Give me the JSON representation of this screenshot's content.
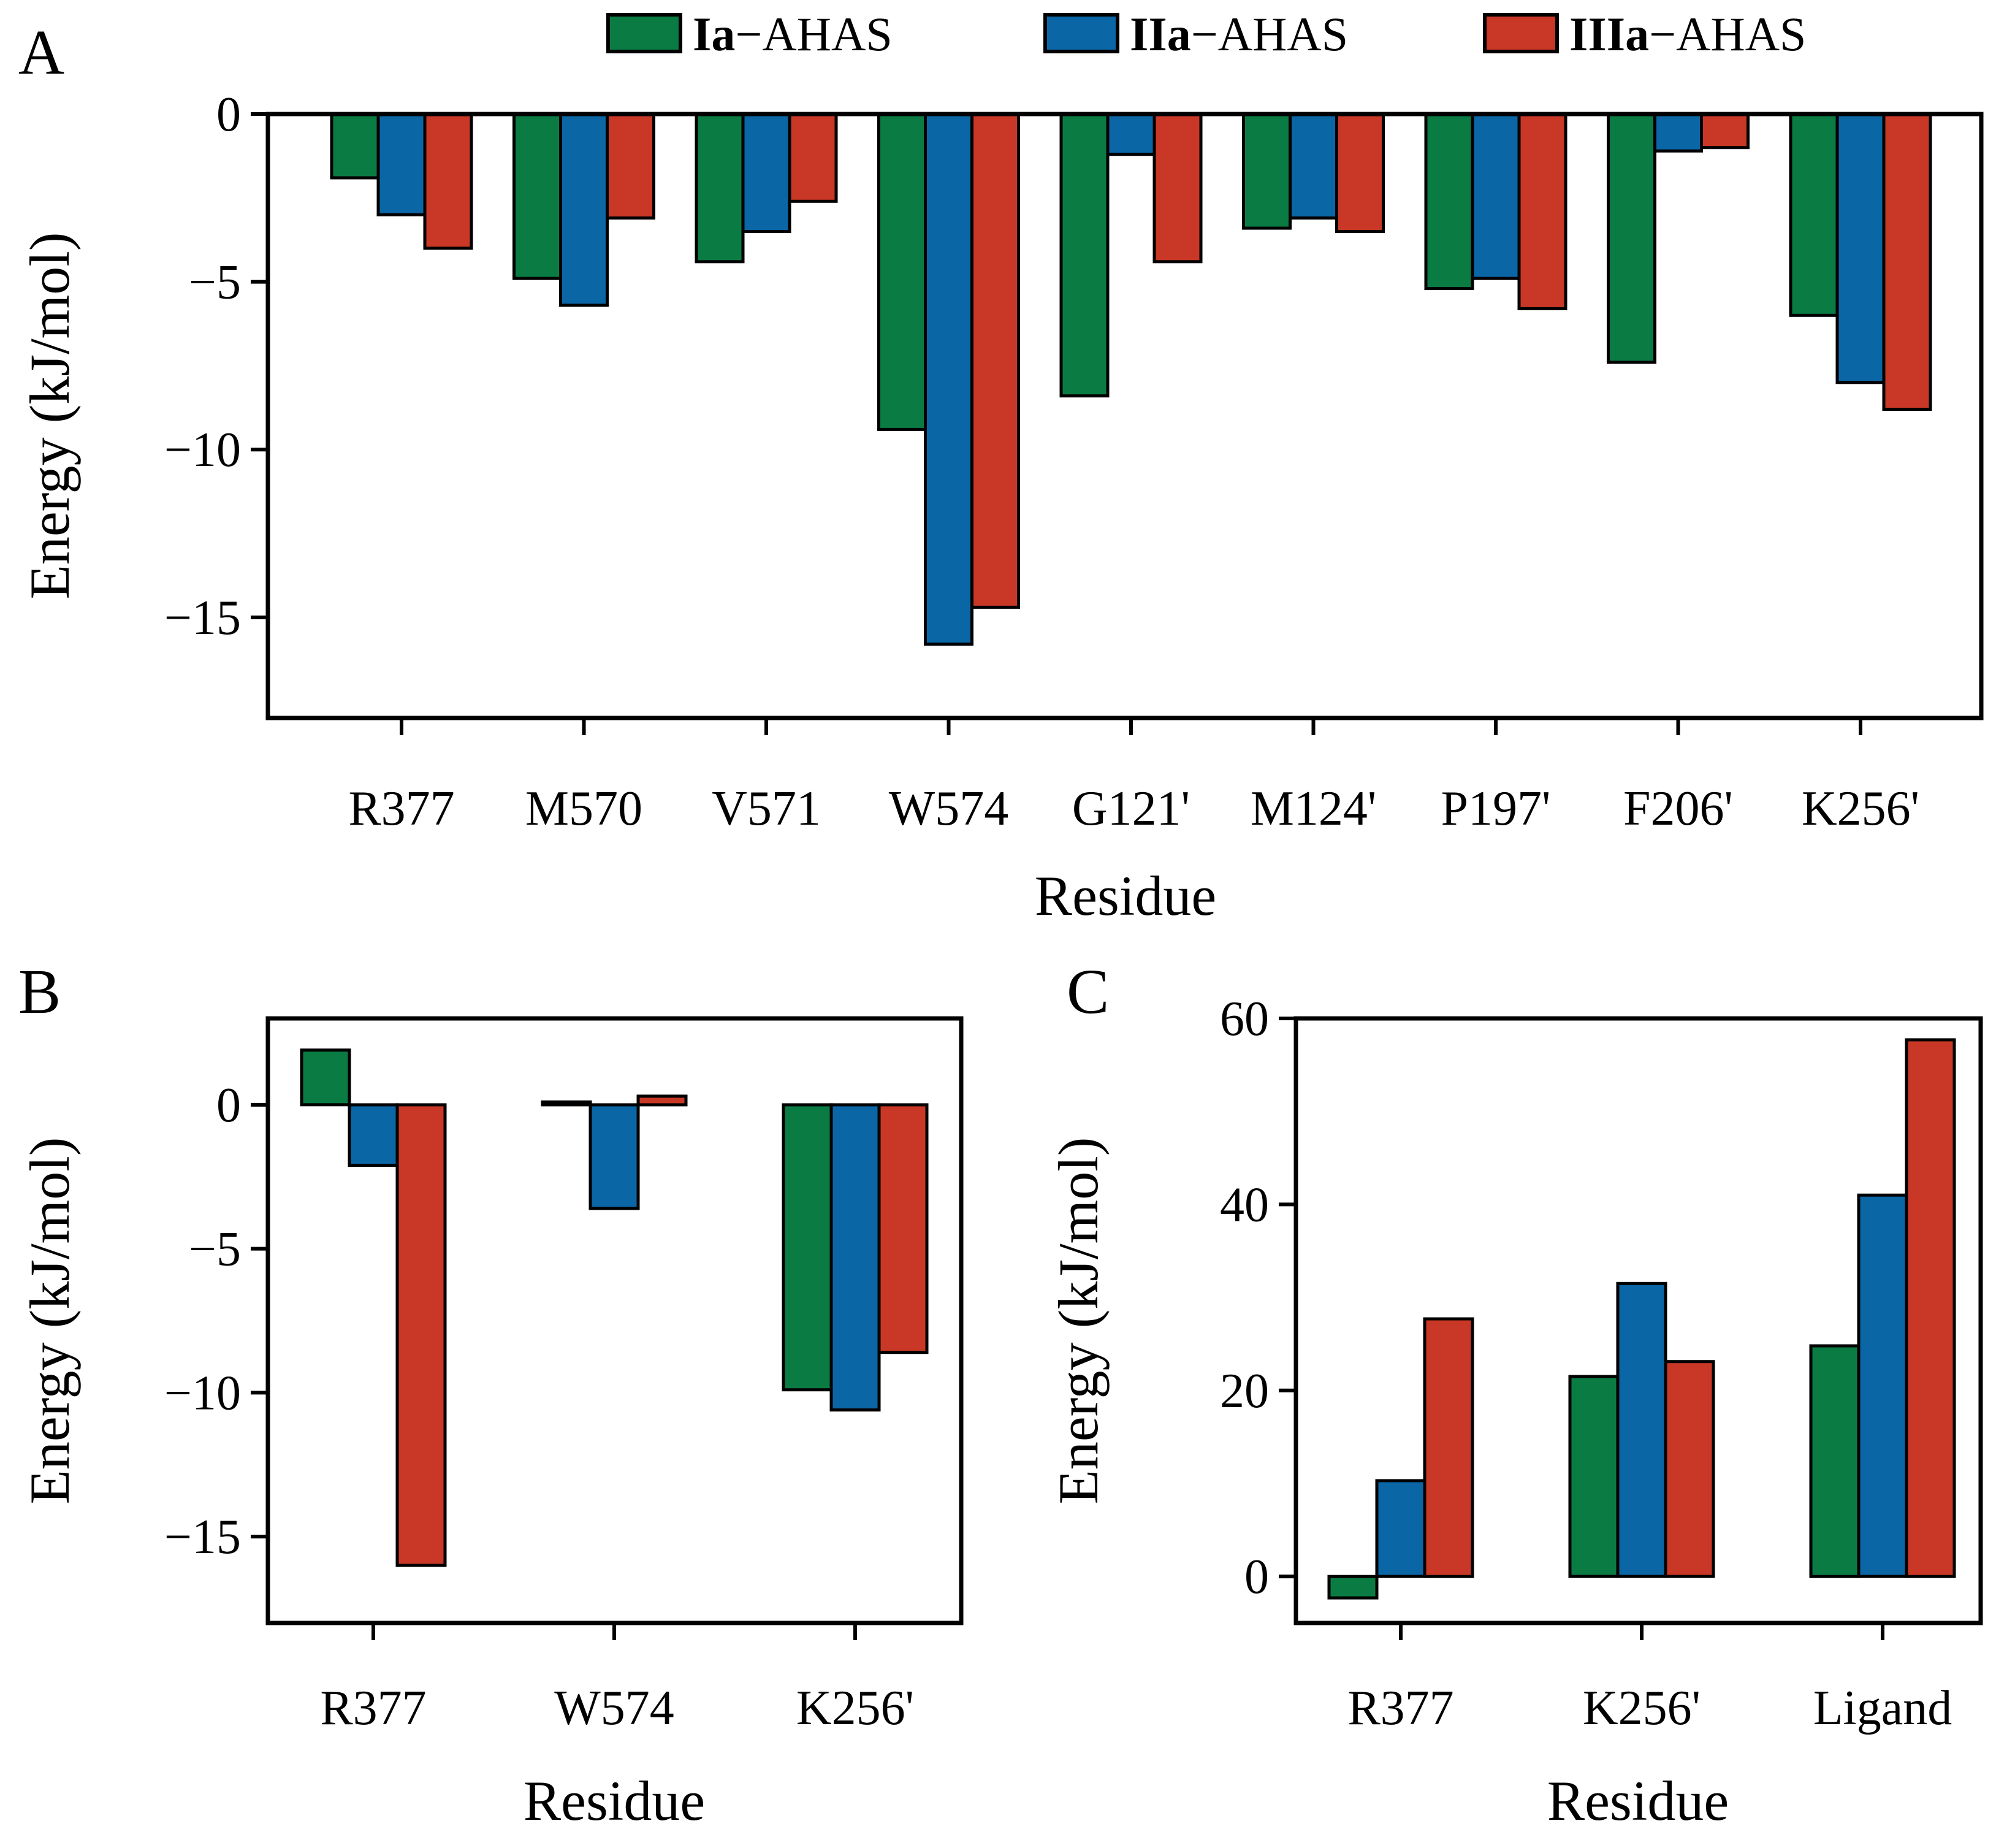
{
  "legend": [
    {
      "bold": "Ia",
      "rest": "−AHAS",
      "color": "#0a7c43"
    },
    {
      "bold": "IIa",
      "rest": "−AHAS",
      "color": "#0b66a6"
    },
    {
      "bold": "IIIa",
      "rest": "−AHAS",
      "color": "#c93826"
    }
  ],
  "chart_data": [
    {
      "panel": "A",
      "type": "bar",
      "xlabel": "Residue",
      "ylabel": "Energy (kJ/mol)",
      "ylim": [
        -18,
        0
      ],
      "yticks": [
        0,
        -5,
        -10,
        -15
      ],
      "ytick_labels": [
        "0",
        "−5",
        "−10",
        "−15"
      ],
      "categories": [
        "R377",
        "M570",
        "V571",
        "W574",
        "G121'",
        "M124'",
        "P197'",
        "F206'",
        "K256'"
      ],
      "series": [
        {
          "name": "Ia-AHAS",
          "values": [
            -1.9,
            -4.9,
            -4.4,
            -9.4,
            -8.4,
            -3.4,
            -5.2,
            -7.4,
            -6.0
          ]
        },
        {
          "name": "IIa-AHAS",
          "values": [
            -3.0,
            -5.7,
            -3.5,
            -15.8,
            -1.2,
            -3.1,
            -4.9,
            -1.1,
            -8.0
          ]
        },
        {
          "name": "IIIa-AHAS",
          "values": [
            -4.0,
            -3.1,
            -2.6,
            -14.7,
            -4.4,
            -3.5,
            -5.8,
            -1.0,
            -8.8
          ]
        }
      ]
    },
    {
      "panel": "B",
      "type": "bar",
      "xlabel": "Residue",
      "ylabel": "Energy (kJ/mol)",
      "ylim": [
        -18,
        3
      ],
      "yticks": [
        0,
        -5,
        -10,
        -15
      ],
      "ytick_labels": [
        "0",
        "−5",
        "−10",
        "−15"
      ],
      "categories": [
        "R377",
        "W574",
        "K256'"
      ],
      "series": [
        {
          "name": "Ia-AHAS",
          "values": [
            1.9,
            0.1,
            -9.9
          ]
        },
        {
          "name": "IIa-AHAS",
          "values": [
            -2.1,
            -3.6,
            -10.6
          ]
        },
        {
          "name": "IIIa-AHAS",
          "values": [
            -16.0,
            0.3,
            -8.6
          ]
        }
      ]
    },
    {
      "panel": "C",
      "type": "bar",
      "xlabel": "Residue",
      "ylabel": "Energy (kJ/mol)",
      "ylim": [
        -5,
        60
      ],
      "yticks": [
        0,
        20,
        40,
        60
      ],
      "ytick_labels": [
        "0",
        "20",
        "40",
        "60"
      ],
      "categories": [
        "R377",
        "K256'",
        "Ligand"
      ],
      "series": [
        {
          "name": "Ia-AHAS",
          "values": [
            -2.3,
            21.5,
            24.8
          ]
        },
        {
          "name": "IIa-AHAS",
          "values": [
            10.3,
            31.5,
            41.0
          ]
        },
        {
          "name": "IIIa-AHAS",
          "values": [
            27.7,
            23.1,
            57.7
          ]
        }
      ]
    }
  ]
}
